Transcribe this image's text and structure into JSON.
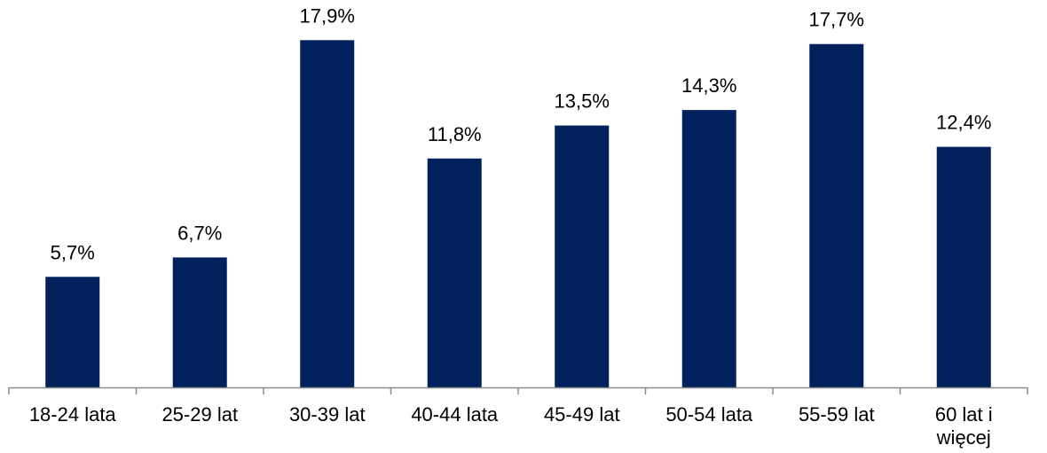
{
  "chart_data": {
    "type": "bar",
    "title": "",
    "xlabel": "",
    "ylabel": "",
    "categories": [
      [
        "18-24 lata"
      ],
      [
        "25-29 lat"
      ],
      [
        "30-39 lat"
      ],
      [
        "40-44 lata"
      ],
      [
        "45-49 lat"
      ],
      [
        "50-54 lata"
      ],
      [
        "55-59 lat"
      ],
      [
        "60 lat i",
        "więcej"
      ]
    ],
    "values": [
      5.7,
      6.7,
      17.9,
      11.8,
      13.5,
      14.3,
      17.7,
      12.4
    ],
    "data_labels": [
      "5,7%",
      "6,7%",
      "17,9%",
      "11,8%",
      "13,5%",
      "14,3%",
      "17,7%",
      "12,4%"
    ],
    "ylim": [
      0,
      18.6
    ],
    "grid": false,
    "legend": "none",
    "colors": {
      "bar": "#00215C",
      "axis": "#8C8C8C",
      "text": "#000000"
    }
  }
}
